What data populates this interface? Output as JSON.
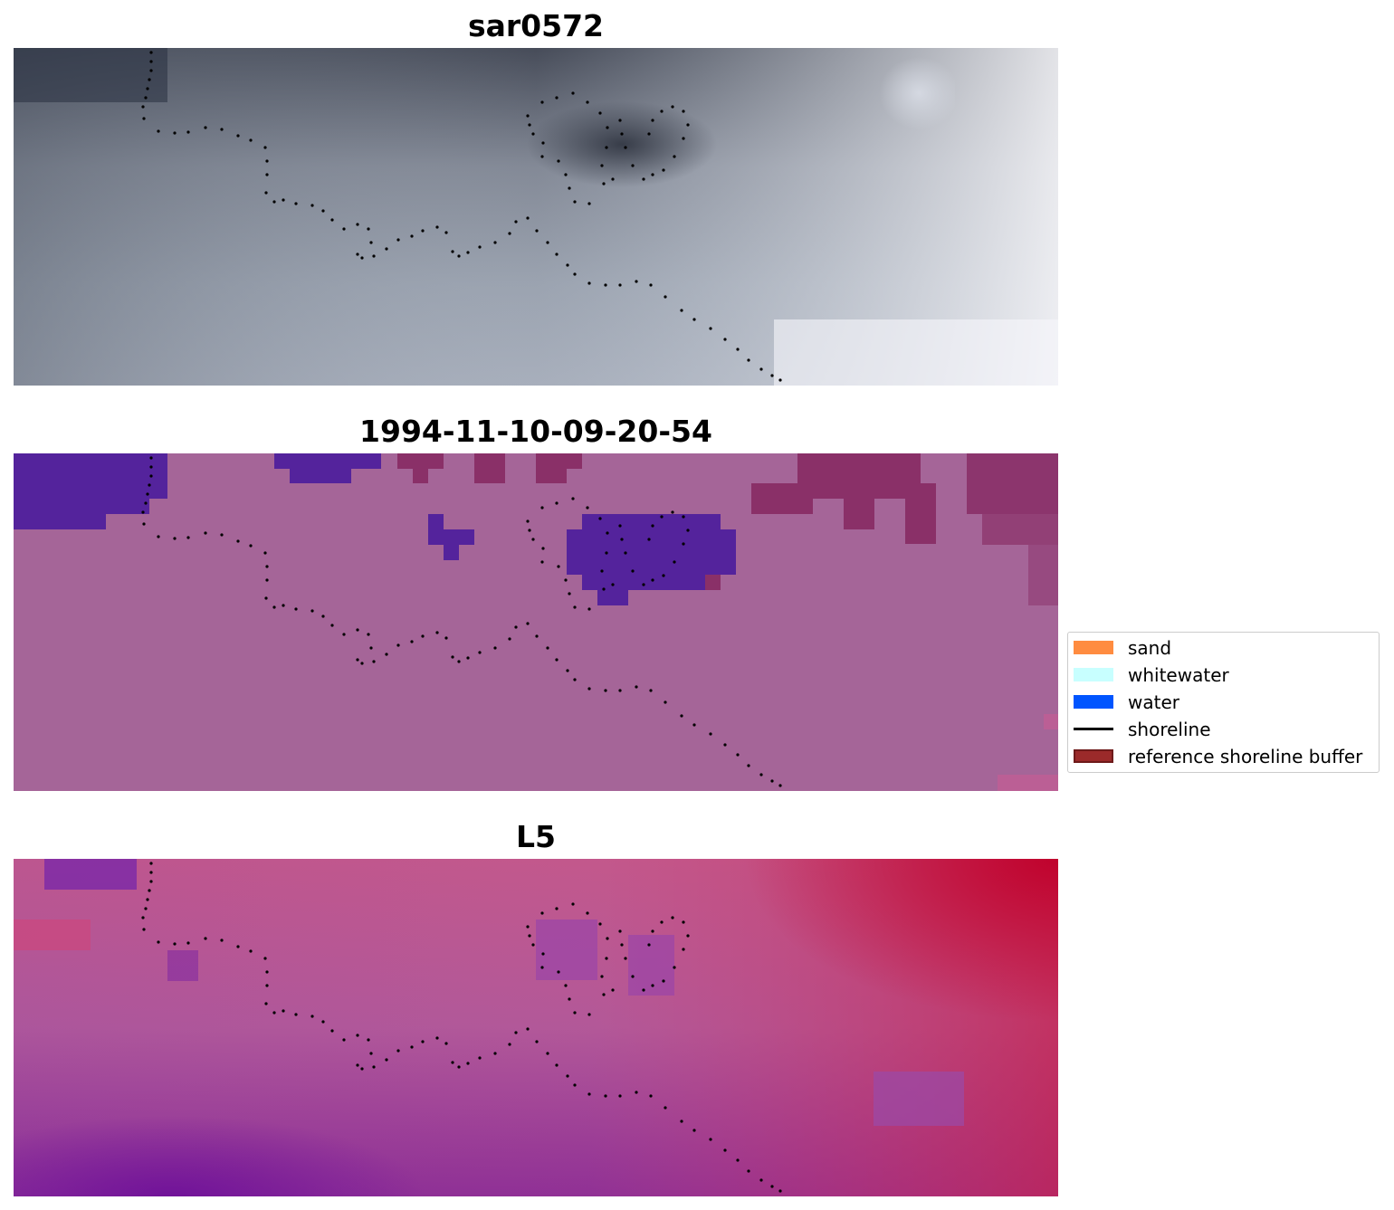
{
  "panels": [
    {
      "title": "sar0572",
      "style": "sar"
    },
    {
      "title": "1994-11-10-09-20-54",
      "style": "classified"
    },
    {
      "title": "L5",
      "style": "index"
    }
  ],
  "legend": {
    "items": [
      {
        "label": "sand",
        "kind": "patch",
        "color": "#ff8c40"
      },
      {
        "label": "whitewater",
        "kind": "patch",
        "color": "#c8ffff"
      },
      {
        "label": "water",
        "kind": "patch",
        "color": "#0055ff"
      },
      {
        "label": "shoreline",
        "kind": "line",
        "color": "#000000"
      },
      {
        "label": "reference shoreline buffer",
        "kind": "patch",
        "color": "#9b2a2a",
        "edge": "#6e1a1a"
      }
    ]
  },
  "colors": {
    "classified_base": "#a56598",
    "classified_water": "#54239c",
    "classified_buffer": "#8a3068",
    "shoreline_dots": "#000000"
  }
}
